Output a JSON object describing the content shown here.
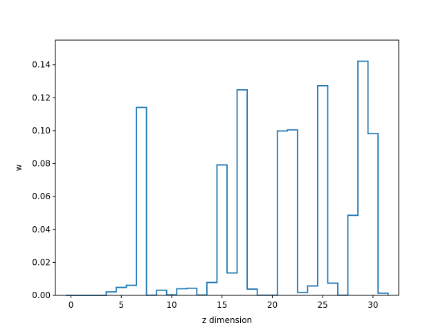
{
  "chart_data": {
    "type": "histogram-step",
    "title": "",
    "xlabel": "z dimension",
    "ylabel": "w",
    "xlim": [
      -1.55,
      32.55
    ],
    "ylim": [
      0.0,
      0.155
    ],
    "xticks": [
      0,
      5,
      10,
      15,
      20,
      25,
      30
    ],
    "yticks": [
      0.0,
      0.02,
      0.04,
      0.06,
      0.08,
      0.1,
      0.12,
      0.14
    ],
    "ytick_labels": [
      "0.00",
      "0.02",
      "0.04",
      "0.06",
      "0.08",
      "0.10",
      "0.12",
      "0.14"
    ],
    "line_color": "#1f77b4",
    "grid": false,
    "bin_edges": [
      -0.5,
      0.5,
      1.5,
      2.5,
      3.5,
      4.5,
      5.5,
      6.5,
      7.5,
      8.5,
      9.5,
      10.5,
      11.5,
      12.5,
      13.5,
      14.5,
      15.5,
      16.5,
      17.5,
      18.5,
      19.5,
      20.5,
      21.5,
      22.5,
      23.5,
      24.5,
      25.5,
      26.5,
      27.5,
      28.5,
      29.5,
      30.5,
      31.5
    ],
    "values": [
      0.0,
      0.0,
      0.0,
      0.0,
      0.0021,
      0.0048,
      0.0061,
      0.1141,
      0.0001,
      0.0031,
      0.0003,
      0.004,
      0.0043,
      0.0002,
      0.0078,
      0.0792,
      0.0136,
      0.1248,
      0.0038,
      0.0001,
      0.0001,
      0.0998,
      0.1005,
      0.0018,
      0.0057,
      0.1273,
      0.0074,
      0.0001,
      0.0486,
      0.1422,
      0.0982,
      0.0013
    ]
  }
}
